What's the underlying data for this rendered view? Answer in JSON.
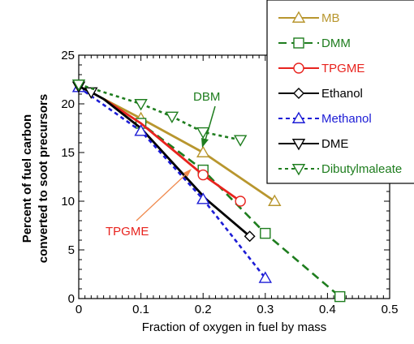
{
  "chart_data": {
    "type": "line",
    "xlabel": "Fraction of oxygen in fuel by mass",
    "ylabel_lines": [
      "Percent of fuel carbon",
      "converted to soot precursors"
    ],
    "xlim": [
      0,
      0.5
    ],
    "ylim": [
      0,
      25
    ],
    "xticks": [
      "0",
      "0.1",
      "0.2",
      "0.3",
      "0.4",
      "0.5"
    ],
    "yticks": [
      "0",
      "5",
      "10",
      "15",
      "20",
      "25"
    ],
    "x_tick_values": [
      0,
      0.1,
      0.2,
      0.3,
      0.4,
      0.5
    ],
    "y_tick_values": [
      0,
      5,
      10,
      15,
      20,
      25
    ],
    "legend_position": "top-right",
    "series": [
      {
        "name": "MB",
        "color": "#b8962e",
        "dash": "solid",
        "marker": "triangle-up",
        "x": [
          0.04,
          0.1,
          0.2,
          0.315
        ],
        "y": [
          20.5,
          18.5,
          15.0,
          10.0
        ],
        "markers_at": [
          1,
          2,
          3
        ]
      },
      {
        "name": "DMM",
        "color": "#1e7d1e",
        "dash": "long-dash",
        "marker": "square",
        "x": [
          0.04,
          0.1,
          0.2,
          0.3,
          0.42
        ],
        "y": [
          20.5,
          18.0,
          13.2,
          6.7,
          0.2
        ],
        "markers_at": [
          1,
          2,
          3,
          4
        ]
      },
      {
        "name": "TPGME",
        "color": "#e8231e",
        "dash": "solid",
        "marker": "circle",
        "x": [
          0.04,
          0.1,
          0.2,
          0.26
        ],
        "y": [
          20.5,
          18.0,
          12.7,
          10.0
        ],
        "markers_at": [
          2,
          3
        ]
      },
      {
        "name": "Ethanol",
        "color": "#000000",
        "dash": "solid",
        "marker": "diamond",
        "x": [
          0.04,
          0.1,
          0.205,
          0.275
        ],
        "y": [
          20.5,
          17.5,
          10.2,
          6.4
        ],
        "markers_at": [
          3
        ]
      },
      {
        "name": "Methanol",
        "color": "#1c1cd6",
        "dash": "dashed",
        "marker": "triangle-up",
        "x": [
          0,
          0.1,
          0.2,
          0.3
        ],
        "y": [
          21.7,
          17.2,
          10.2,
          2.1
        ],
        "markers_at": [
          0,
          1,
          2,
          3
        ]
      },
      {
        "name": "DME",
        "color": "#000000",
        "dash": "solid",
        "marker": "triangle-down",
        "x": [
          0,
          0.02,
          0.04
        ],
        "y": [
          21.8,
          21.2,
          20.5
        ],
        "markers_at": [
          0,
          1
        ]
      },
      {
        "name": "Dibutylmaleate",
        "color": "#1e7d1e",
        "dash": "short-dash",
        "marker": "triangle-down",
        "x": [
          0,
          0.1,
          0.15,
          0.2,
          0.26
        ],
        "y": [
          22.0,
          20.0,
          18.7,
          17.1,
          16.3
        ],
        "markers_at": [
          0,
          1,
          2,
          3,
          4
        ]
      }
    ],
    "annotations": [
      {
        "text": "DBM",
        "color": "#1e7d1e"
      },
      {
        "text": "TPGME",
        "color": "#e8231e"
      }
    ],
    "grid": false
  }
}
